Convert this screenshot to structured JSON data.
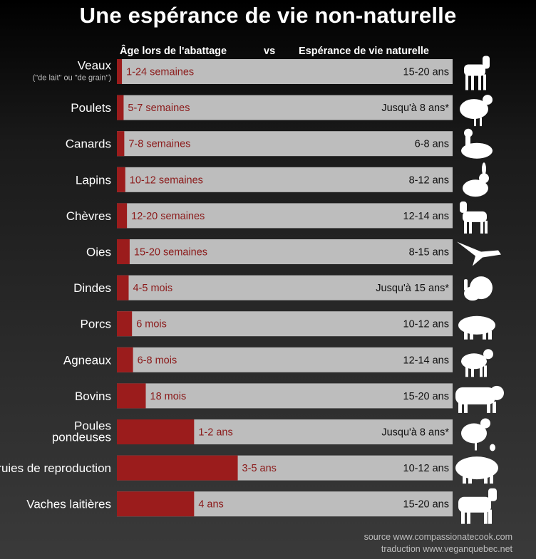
{
  "title": "Une espérance de vie non-naturelle",
  "header": {
    "left": "Âge lors de l'abattage",
    "vs": "vs",
    "right": "Espérance de vie naturelle"
  },
  "colors": {
    "background": "#222222",
    "bar_background": "#bdbdbd",
    "slaughter_bar": "#9b1c1c",
    "slaughter_text": "#8b1a1a",
    "lifespan_text": "#111111",
    "silhouette": "#ffffff"
  },
  "chart_data": {
    "type": "bar",
    "orientation": "horizontal",
    "unit": "fraction of natural lifespan (estimated)",
    "xlim": [
      0,
      1
    ],
    "rows": [
      {
        "animal": "Veaux",
        "sublabel": "(\"de lait\" ou \"de grain\")",
        "slaughter_age": "1-24 semaines",
        "natural_lifespan": "15-20 ans",
        "ratio": 0.015,
        "icon": "calf-icon"
      },
      {
        "animal": "Poulets",
        "sublabel": "",
        "slaughter_age": "5-7 semaines",
        "natural_lifespan": "Jusqu'à 8 ans*",
        "ratio": 0.02,
        "icon": "chicken-icon"
      },
      {
        "animal": "Canards",
        "sublabel": "",
        "slaughter_age": "7-8 semaines",
        "natural_lifespan": "6-8 ans",
        "ratio": 0.022,
        "icon": "duck-icon"
      },
      {
        "animal": "Lapins",
        "sublabel": "",
        "slaughter_age": "10-12 semaines",
        "natural_lifespan": "8-12 ans",
        "ratio": 0.025,
        "icon": "rabbit-icon"
      },
      {
        "animal": "Chèvres",
        "sublabel": "",
        "slaughter_age": "12-20 semaines",
        "natural_lifespan": "12-14 ans",
        "ratio": 0.03,
        "icon": "goat-icon"
      },
      {
        "animal": "Oies",
        "sublabel": "",
        "slaughter_age": "15-20 semaines",
        "natural_lifespan": "8-15 ans",
        "ratio": 0.038,
        "icon": "goose-icon"
      },
      {
        "animal": "Dindes",
        "sublabel": "",
        "slaughter_age": "4-5 mois",
        "natural_lifespan": "Jusqu'à 15 ans*",
        "ratio": 0.035,
        "icon": "turkey-icon"
      },
      {
        "animal": "Porcs",
        "sublabel": "",
        "slaughter_age": "6 mois",
        "natural_lifespan": "10-12 ans",
        "ratio": 0.045,
        "icon": "pig-icon"
      },
      {
        "animal": "Agneaux",
        "sublabel": "",
        "slaughter_age": "6-8 mois",
        "natural_lifespan": "12-14 ans",
        "ratio": 0.048,
        "icon": "lamb-icon"
      },
      {
        "animal": "Bovins",
        "sublabel": "",
        "slaughter_age": "18 mois",
        "natural_lifespan": "15-20 ans",
        "ratio": 0.086,
        "icon": "cattle-icon"
      },
      {
        "animal": "Poules pondeuses",
        "sublabel": "",
        "slaughter_age": "1-2 ans",
        "natural_lifespan": "Jusqu'à 8 ans*",
        "ratio": 0.23,
        "icon": "hen-icon"
      },
      {
        "animal": "Truies de reproduction",
        "sublabel": "",
        "slaughter_age": "3-5 ans",
        "natural_lifespan": "10-12 ans",
        "ratio": 0.36,
        "icon": "sow-icon"
      },
      {
        "animal": "Vaches laitières",
        "sublabel": "",
        "slaughter_age": "4 ans",
        "natural_lifespan": "15-20 ans",
        "ratio": 0.23,
        "icon": "cow-icon"
      }
    ]
  },
  "source": {
    "line1": "source www.compassionatecook.com",
    "line2": "traduction www.veganquebec.net"
  }
}
